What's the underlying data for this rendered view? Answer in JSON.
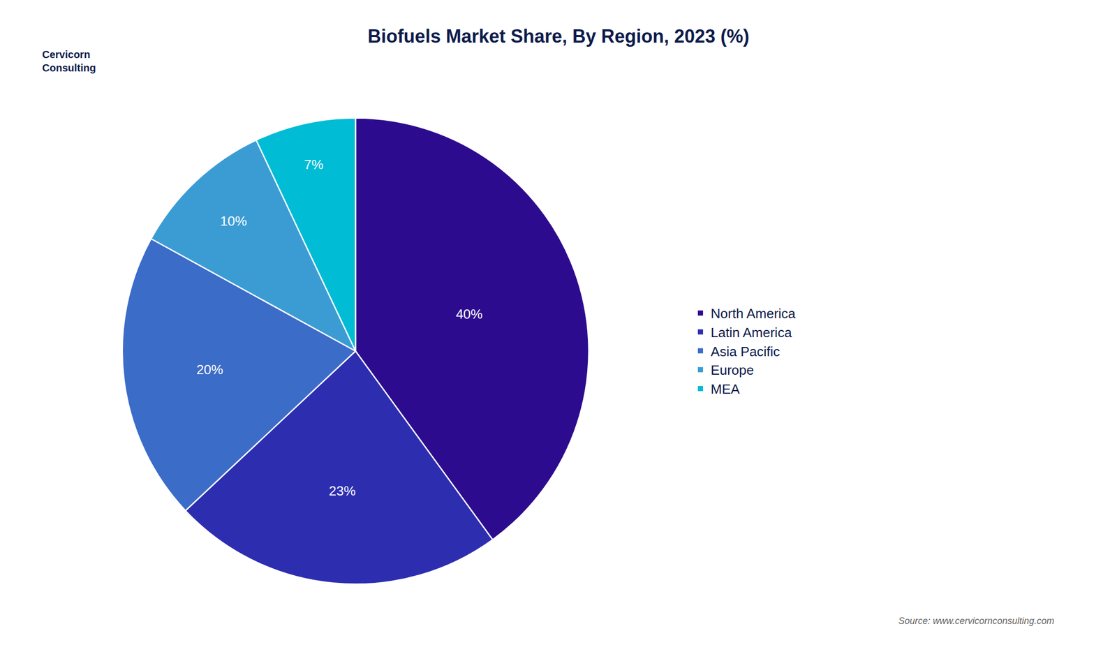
{
  "chart_data": {
    "type": "pie",
    "title": "Biofuels Market Share, By Region, 2023 (%)",
    "categories": [
      "North America",
      "Latin America",
      "Asia Pacific",
      "Europe",
      "MEA"
    ],
    "values": [
      40,
      23,
      20,
      10,
      7
    ],
    "value_labels": [
      "40%",
      "23%",
      "20%",
      "10%",
      "7%"
    ],
    "data_labels": true,
    "colors": [
      "#2D0B8E",
      "#2D2DB0",
      "#3B6CC8",
      "#3B9CD4",
      "#00BCD4"
    ],
    "legend": "right",
    "annotations": [
      "Cervicorn\nConsulting",
      "Source: www.cervicornconsulting.com"
    ]
  }
}
